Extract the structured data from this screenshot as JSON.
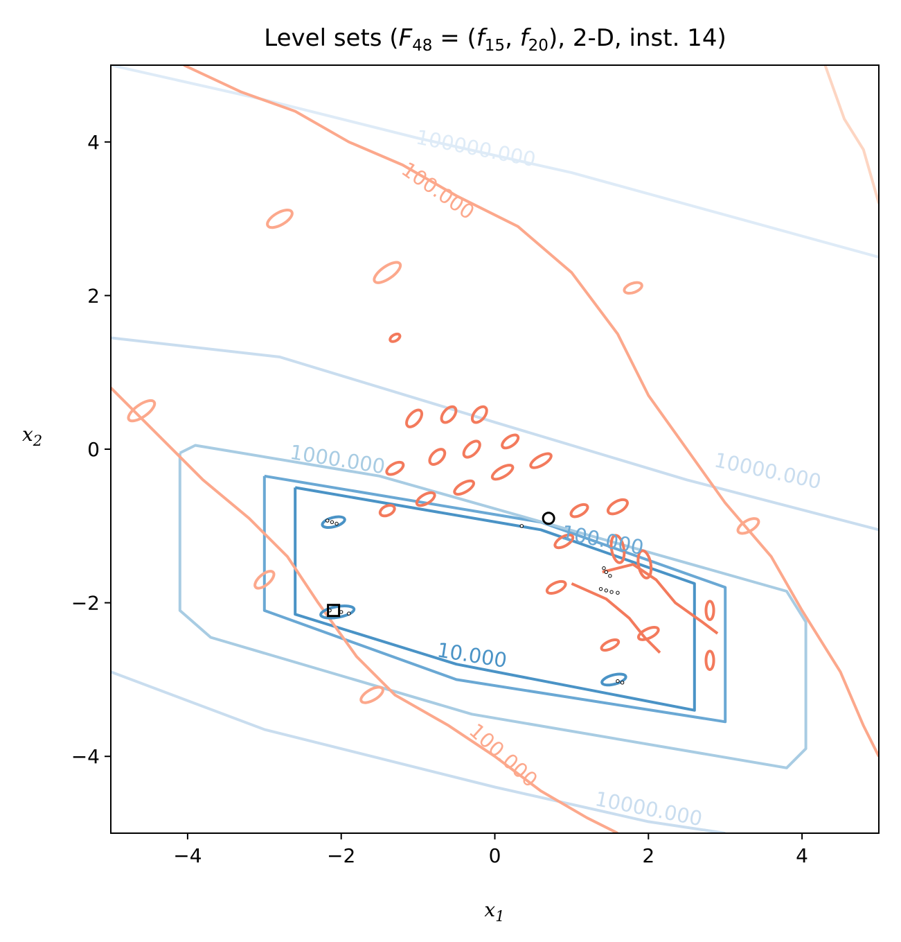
{
  "chart_data": {
    "type": "line",
    "title": "Level sets (F48 = (f15, f20), 2-D, inst. 14)",
    "title_parts": {
      "prefix": "Level sets (",
      "func": "F",
      "func_sub": "48",
      "eq": " = (",
      "f1": "f",
      "f1_sub": "15",
      "comma": ", ",
      "f2": "f",
      "f2_sub": "20",
      "suffix": "), 2-D, inst. 14)"
    },
    "xlabel": "x1",
    "xlabel_parts": {
      "base": "x",
      "sub": "1"
    },
    "ylabel": "x2",
    "ylabel_parts": {
      "base": "x",
      "sub": "2"
    },
    "xlim": [
      -5,
      5
    ],
    "ylim": [
      -5,
      5
    ],
    "xticks": [
      -4,
      -2,
      0,
      2,
      4
    ],
    "yticks": [
      -4,
      -2,
      0,
      2,
      4
    ],
    "grid": false,
    "colors": {
      "blue_10": "#4a93c6",
      "blue_100": "#6aa8d4",
      "blue_1000": "#a8cce3",
      "blue_10000": "#c9ddef",
      "blue_100000": "#deebf7",
      "red_dark": "#f37a5c",
      "red_mid": "#fca88c",
      "red_light": "#fdd5c2"
    },
    "series": [
      {
        "level": "10.000",
        "color_key": "blue_10",
        "points": [
          [
            -2.6,
            -0.5
          ],
          [
            0.6,
            -1.05
          ],
          [
            2.6,
            -1.75
          ],
          [
            2.6,
            -3.4
          ],
          [
            -0.5,
            -2.8
          ],
          [
            -2.6,
            -2.15
          ],
          [
            -2.6,
            -0.5
          ]
        ]
      },
      {
        "level": "100.000",
        "color_key": "blue_100",
        "points": [
          [
            -3.0,
            -0.35
          ],
          [
            0.6,
            -0.95
          ],
          [
            3.0,
            -1.8
          ],
          [
            3.0,
            -3.55
          ],
          [
            -0.5,
            -3.0
          ],
          [
            -3.0,
            -2.1
          ],
          [
            -3.0,
            -0.35
          ]
        ]
      },
      {
        "level": "1000.000",
        "color_key": "blue_1000",
        "points": [
          [
            -4.1,
            -0.05
          ],
          [
            -3.9,
            0.05
          ],
          [
            -1.5,
            -0.35
          ],
          [
            3.8,
            -1.85
          ],
          [
            4.05,
            -2.25
          ],
          [
            4.05,
            -3.9
          ],
          [
            3.8,
            -4.15
          ],
          [
            -0.3,
            -3.45
          ],
          [
            -3.7,
            -2.45
          ],
          [
            -4.1,
            -2.1
          ],
          [
            -4.1,
            -0.05
          ]
        ]
      },
      {
        "level": "10000.000",
        "color_key": "blue_10000",
        "points": [
          [
            -5,
            1.45
          ],
          [
            -2.8,
            1.2
          ],
          [
            0,
            0.35
          ],
          [
            2.5,
            -0.4
          ],
          [
            5,
            -1.05
          ]
        ]
      },
      {
        "level": "10000.000",
        "color_key": "blue_10000",
        "points": [
          [
            -5,
            -2.9
          ],
          [
            -3,
            -3.65
          ],
          [
            0,
            -4.4
          ],
          [
            2,
            -4.85
          ],
          [
            3,
            -5.0
          ]
        ]
      },
      {
        "level": "100000.000",
        "color_key": "blue_100000",
        "points": [
          [
            -5,
            5.0
          ],
          [
            -3,
            4.55
          ],
          [
            -1,
            4.05
          ],
          [
            1,
            3.6
          ],
          [
            3,
            3.05
          ],
          [
            5,
            2.5
          ]
        ]
      },
      {
        "level": "100.000",
        "color_key": "red_mid",
        "points": [
          [
            -4.05,
            5
          ],
          [
            -3.3,
            4.65
          ],
          [
            -2.6,
            4.4
          ],
          [
            -1.9,
            4.0
          ],
          [
            -1.2,
            3.7
          ],
          [
            -0.5,
            3.3
          ],
          [
            0.3,
            2.9
          ],
          [
            1.0,
            2.3
          ],
          [
            1.6,
            1.5
          ],
          [
            2.0,
            0.7
          ],
          [
            2.5,
            0.0
          ],
          [
            3.0,
            -0.7
          ],
          [
            3.6,
            -1.4
          ],
          [
            4.0,
            -2.1
          ],
          [
            4.5,
            -2.9
          ],
          [
            4.8,
            -3.6
          ],
          [
            5,
            -4.0
          ]
        ]
      },
      {
        "level": "100.000",
        "color_key": "red_mid",
        "points": [
          [
            -5,
            0.8
          ],
          [
            -4.4,
            0.2
          ],
          [
            -3.8,
            -0.4
          ],
          [
            -3.2,
            -0.9
          ],
          [
            -2.7,
            -1.4
          ],
          [
            -2.3,
            -2.0
          ],
          [
            -1.8,
            -2.7
          ],
          [
            -1.3,
            -3.2
          ],
          [
            -0.6,
            -3.6
          ],
          [
            0.0,
            -4.0
          ],
          [
            0.6,
            -4.45
          ],
          [
            1.2,
            -4.8
          ],
          [
            1.6,
            -5.0
          ]
        ]
      },
      {
        "level": "",
        "color_key": "red_light",
        "points": [
          [
            4.3,
            5
          ],
          [
            4.55,
            4.3
          ],
          [
            4.8,
            3.9
          ],
          [
            5,
            3.2
          ]
        ]
      },
      {
        "level": "",
        "color_key": "red_dark",
        "points": [
          [
            1.4,
            -1.6
          ],
          [
            1.8,
            -1.5
          ],
          [
            2.1,
            -1.7
          ],
          [
            2.35,
            -2.0
          ],
          [
            2.7,
            -2.25
          ],
          [
            2.9,
            -2.4
          ]
        ]
      },
      {
        "level": "",
        "color_key": "red_dark",
        "points": [
          [
            1.0,
            -1.75
          ],
          [
            1.45,
            -1.95
          ],
          [
            1.75,
            -2.2
          ],
          [
            1.95,
            -2.45
          ],
          [
            2.15,
            -2.65
          ]
        ]
      }
    ],
    "ellipses": [
      {
        "cx": -1.4,
        "cy": -0.8,
        "rx": 0.1,
        "ry": 0.06,
        "rot": -25,
        "color_key": "red_dark"
      },
      {
        "cx": -0.9,
        "cy": -0.65,
        "rx": 0.13,
        "ry": 0.06,
        "rot": -30,
        "color_key": "red_dark"
      },
      {
        "cx": -0.4,
        "cy": -0.5,
        "rx": 0.14,
        "ry": 0.06,
        "rot": -30,
        "color_key": "red_dark"
      },
      {
        "cx": 0.1,
        "cy": -0.3,
        "rx": 0.15,
        "ry": 0.06,
        "rot": -30,
        "color_key": "red_dark"
      },
      {
        "cx": 0.6,
        "cy": -0.15,
        "rx": 0.15,
        "ry": 0.06,
        "rot": -30,
        "color_key": "red_dark"
      },
      {
        "cx": -1.3,
        "cy": -0.25,
        "rx": 0.12,
        "ry": 0.06,
        "rot": -30,
        "color_key": "red_dark"
      },
      {
        "cx": -0.75,
        "cy": -0.1,
        "rx": 0.12,
        "ry": 0.07,
        "rot": -45,
        "color_key": "red_dark"
      },
      {
        "cx": -0.3,
        "cy": 0.0,
        "rx": 0.13,
        "ry": 0.07,
        "rot": -45,
        "color_key": "red_dark"
      },
      {
        "cx": 0.2,
        "cy": 0.1,
        "rx": 0.12,
        "ry": 0.06,
        "rot": -35,
        "color_key": "red_dark"
      },
      {
        "cx": -1.05,
        "cy": 0.4,
        "rx": 0.13,
        "ry": 0.07,
        "rot": -50,
        "color_key": "red_dark"
      },
      {
        "cx": -0.6,
        "cy": 0.45,
        "rx": 0.12,
        "ry": 0.07,
        "rot": -50,
        "color_key": "red_dark"
      },
      {
        "cx": -0.2,
        "cy": 0.45,
        "rx": 0.12,
        "ry": 0.07,
        "rot": -50,
        "color_key": "red_dark"
      },
      {
        "cx": -1.3,
        "cy": 1.45,
        "rx": 0.07,
        "ry": 0.04,
        "rot": -30,
        "color_key": "red_dark"
      },
      {
        "cx": 1.6,
        "cy": -0.75,
        "rx": 0.14,
        "ry": 0.07,
        "rot": -30,
        "color_key": "red_dark"
      },
      {
        "cx": 1.1,
        "cy": -0.8,
        "rx": 0.12,
        "ry": 0.06,
        "rot": -30,
        "color_key": "red_dark"
      },
      {
        "cx": 0.9,
        "cy": -1.2,
        "rx": 0.13,
        "ry": 0.06,
        "rot": -30,
        "color_key": "red_dark"
      },
      {
        "cx": 1.6,
        "cy": -1.3,
        "rx": 0.08,
        "ry": 0.18,
        "rot": -10,
        "color_key": "red_dark"
      },
      {
        "cx": 1.95,
        "cy": -1.5,
        "rx": 0.08,
        "ry": 0.18,
        "rot": -10,
        "color_key": "red_dark"
      },
      {
        "cx": 2.0,
        "cy": -2.4,
        "rx": 0.14,
        "ry": 0.06,
        "rot": -25,
        "color_key": "red_dark"
      },
      {
        "cx": 1.5,
        "cy": -2.55,
        "rx": 0.12,
        "ry": 0.05,
        "rot": -25,
        "color_key": "red_dark"
      },
      {
        "cx": 0.8,
        "cy": -1.8,
        "rx": 0.13,
        "ry": 0.06,
        "rot": -25,
        "color_key": "red_dark"
      },
      {
        "cx": 2.8,
        "cy": -2.1,
        "rx": 0.05,
        "ry": 0.12,
        "rot": 0,
        "color_key": "red_dark"
      },
      {
        "cx": 2.8,
        "cy": -2.75,
        "rx": 0.05,
        "ry": 0.12,
        "rot": 0,
        "color_key": "red_dark"
      },
      {
        "cx": -2.1,
        "cy": -0.95,
        "rx": 0.15,
        "ry": 0.06,
        "rot": -15,
        "color_key": "blue_10"
      },
      {
        "cx": -2.05,
        "cy": -2.12,
        "rx": 0.22,
        "ry": 0.07,
        "rot": -10,
        "color_key": "blue_10"
      },
      {
        "cx": 1.55,
        "cy": -3.0,
        "rx": 0.16,
        "ry": 0.06,
        "rot": -15,
        "color_key": "blue_10"
      },
      {
        "cx": -2.8,
        "cy": 3.0,
        "rx": 0.18,
        "ry": 0.08,
        "rot": -30,
        "color_key": "red_mid"
      },
      {
        "cx": -1.4,
        "cy": 2.3,
        "rx": 0.2,
        "ry": 0.08,
        "rot": -35,
        "color_key": "red_mid"
      },
      {
        "cx": 1.8,
        "cy": 2.1,
        "rx": 0.12,
        "ry": 0.06,
        "rot": -20,
        "color_key": "red_mid"
      },
      {
        "cx": -4.6,
        "cy": 0.5,
        "rx": 0.2,
        "ry": 0.08,
        "rot": -35,
        "color_key": "red_mid"
      },
      {
        "cx": -3.0,
        "cy": -1.7,
        "rx": 0.15,
        "ry": 0.07,
        "rot": -40,
        "color_key": "red_mid"
      },
      {
        "cx": -1.6,
        "cy": -3.2,
        "rx": 0.16,
        "ry": 0.07,
        "rot": -30,
        "color_key": "red_mid"
      },
      {
        "cx": 3.3,
        "cy": -1.0,
        "rx": 0.15,
        "ry": 0.07,
        "rot": -30,
        "color_key": "red_mid"
      }
    ],
    "contour_labels": [
      {
        "text": "1000.000",
        "x": -2.05,
        "y": -0.15,
        "rot": 9,
        "color_key": "blue_1000"
      },
      {
        "text": "10000.000",
        "x": 3.55,
        "y": -0.3,
        "rot": 12,
        "color_key": "blue_10000"
      },
      {
        "text": "100.000",
        "x": 1.4,
        "y": -1.2,
        "rot": 11,
        "color_key": "blue_100"
      },
      {
        "text": "10.000",
        "x": -0.3,
        "y": -2.7,
        "rot": 9,
        "color_key": "blue_10"
      },
      {
        "text": "100000.000",
        "x": -0.25,
        "y": 3.9,
        "rot": 11,
        "color_key": "blue_100000"
      },
      {
        "text": "10000.000",
        "x": 2.0,
        "y": -4.7,
        "rot": 11,
        "color_key": "blue_10000"
      },
      {
        "text": "100.000",
        "x": -0.75,
        "y": 3.35,
        "rot": 35,
        "color_key": "red_mid"
      },
      {
        "text": "100.000",
        "x": 0.1,
        "y": -4.0,
        "rot": 42,
        "color_key": "red_mid"
      }
    ],
    "markers": [
      {
        "shape": "circle",
        "x": 0.7,
        "y": -0.9
      },
      {
        "shape": "square",
        "x": -2.1,
        "y": -2.1
      }
    ],
    "dots": [
      [
        0.35,
        -1.0
      ],
      [
        1.42,
        -1.55
      ],
      [
        1.45,
        -1.6
      ],
      [
        1.5,
        -1.65
      ],
      [
        1.38,
        -1.82
      ],
      [
        1.45,
        -1.84
      ],
      [
        1.52,
        -1.86
      ],
      [
        1.6,
        -1.87
      ],
      [
        -2.18,
        -0.93
      ],
      [
        -2.12,
        -0.95
      ],
      [
        -2.06,
        -0.97
      ],
      [
        -2.15,
        -2.1
      ],
      [
        -2.0,
        -2.12
      ],
      [
        -1.9,
        -2.14
      ],
      [
        1.6,
        -3.02
      ],
      [
        1.66,
        -3.04
      ]
    ]
  }
}
